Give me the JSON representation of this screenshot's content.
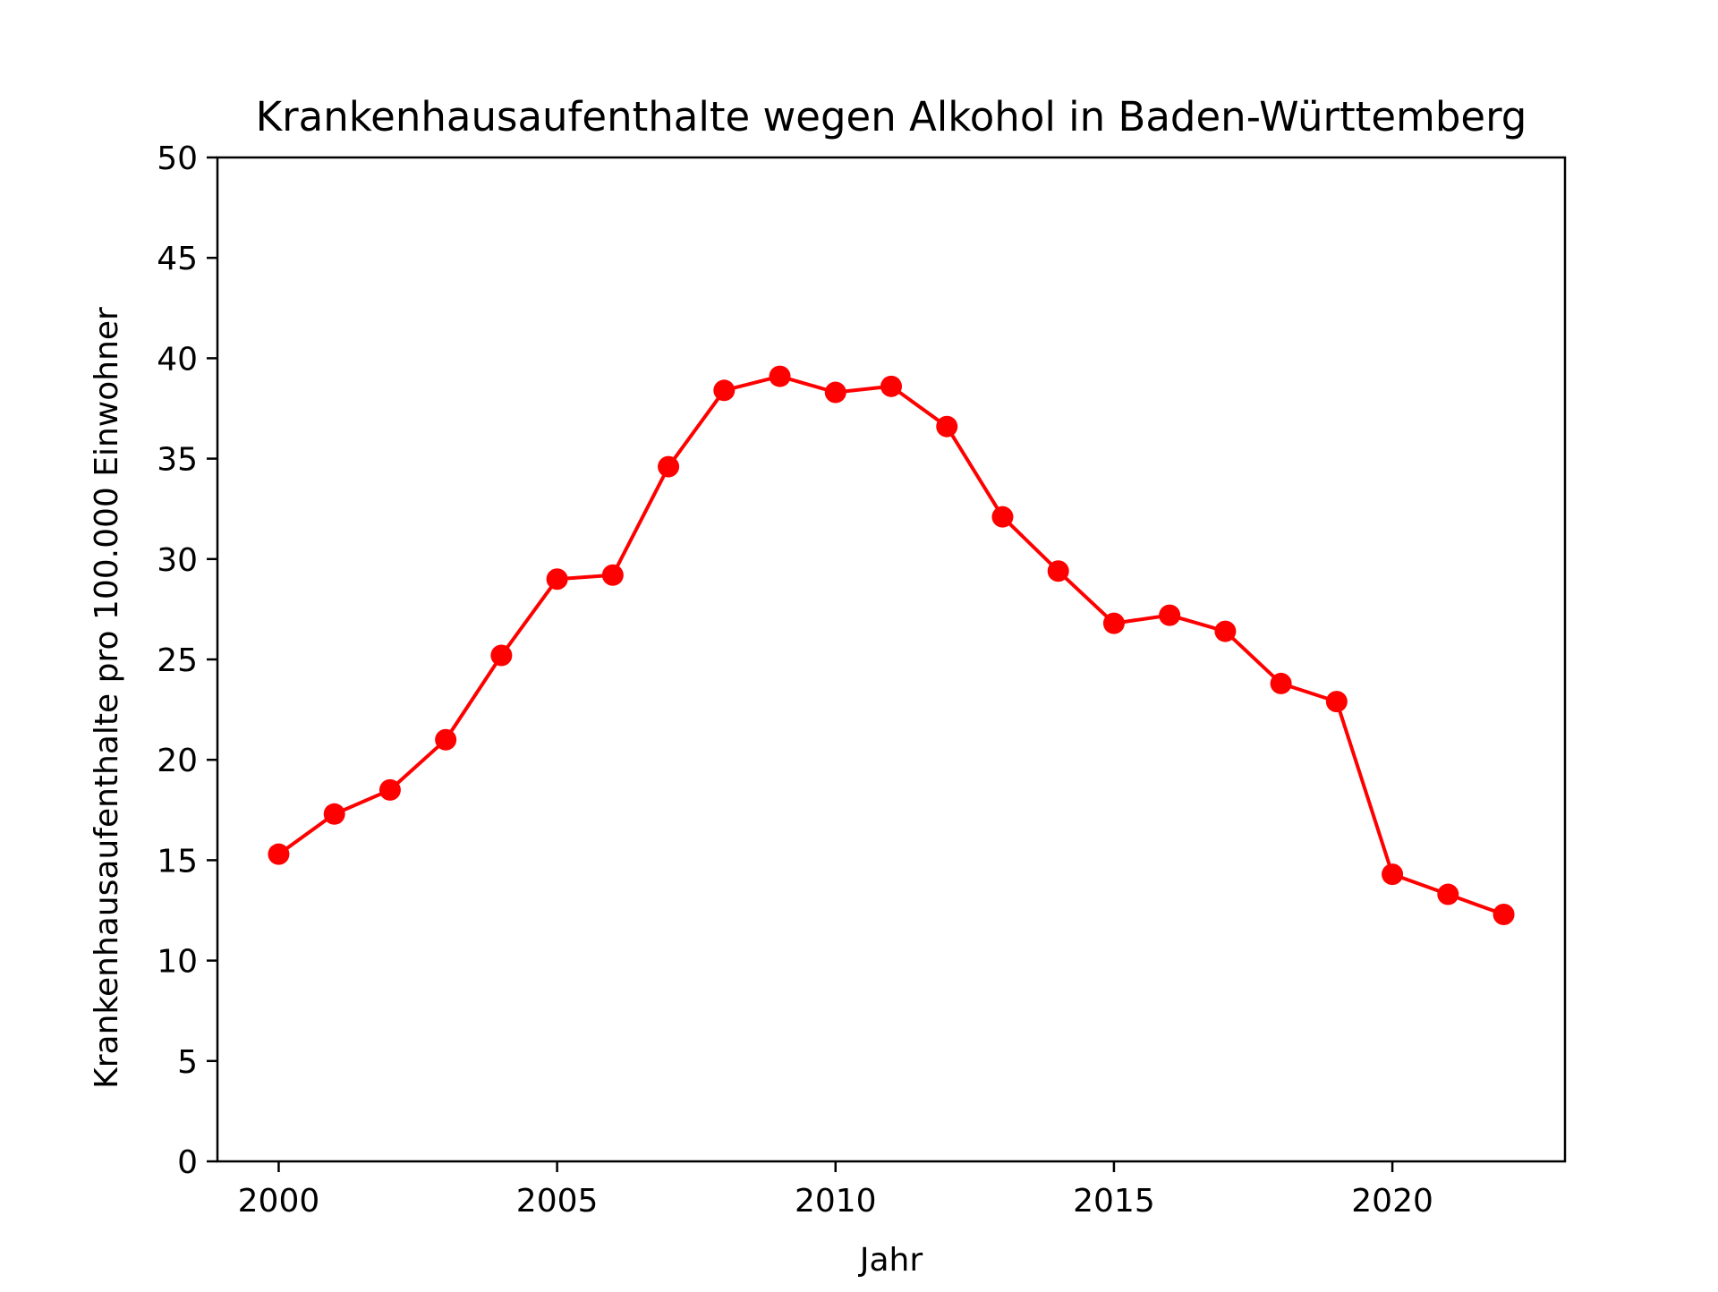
{
  "chart_data": {
    "type": "line",
    "title": "Krankenhausaufenthalte wegen Alkohol in Baden-Württemberg",
    "xlabel": "Jahr",
    "ylabel": "Krankenhausaufenthalte pro 100.000 Einwohner",
    "xlim": [
      1998.9,
      2023.1
    ],
    "ylim": [
      0,
      50
    ],
    "x_ticks": [
      2000,
      2005,
      2010,
      2015,
      2020
    ],
    "y_ticks": [
      0,
      5,
      10,
      15,
      20,
      25,
      30,
      35,
      40,
      45,
      50
    ],
    "grid": false,
    "series": [
      {
        "color": "#ff0000",
        "marker": "circle",
        "x": [
          2000,
          2001,
          2002,
          2003,
          2004,
          2005,
          2006,
          2007,
          2008,
          2009,
          2010,
          2011,
          2012,
          2013,
          2014,
          2015,
          2016,
          2017,
          2018,
          2019,
          2020,
          2021,
          2022
        ],
        "y": [
          15.3,
          17.3,
          18.5,
          21.0,
          25.2,
          29.0,
          29.2,
          34.6,
          38.4,
          39.1,
          38.3,
          38.6,
          36.6,
          32.1,
          29.4,
          26.8,
          27.2,
          26.4,
          23.8,
          22.9,
          14.3,
          13.3,
          12.3
        ]
      }
    ]
  }
}
